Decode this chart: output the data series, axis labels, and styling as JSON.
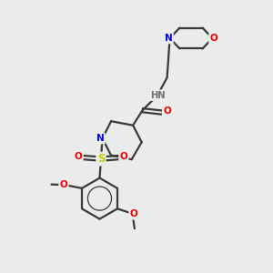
{
  "bg_color": "#eaecec",
  "atom_colors": {
    "C": "#3a3a3a",
    "N": "#0000ee",
    "O": "#ee0000",
    "S": "#cccc00",
    "H": "#707070"
  },
  "bond_color": "#3a3a3a",
  "bond_width": 1.6
}
